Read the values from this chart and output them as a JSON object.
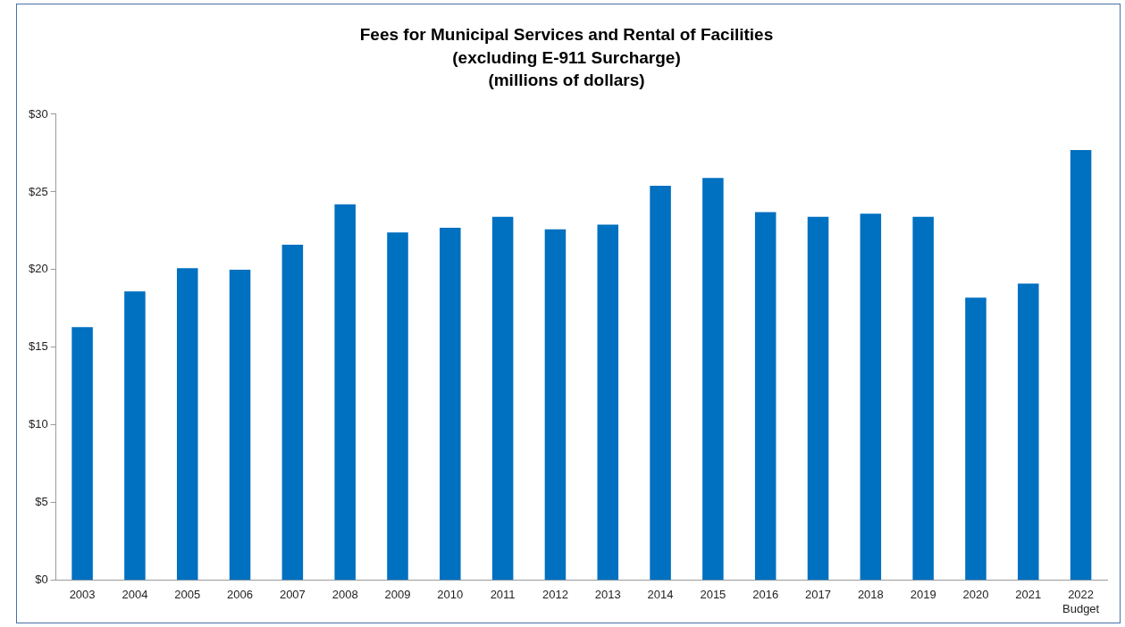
{
  "chart_data": {
    "type": "bar",
    "title": "Fees for Municipal Services and Rental of Facilities\n(excluding E-911 Surcharge)\n(millions of dollars)",
    "categories": [
      "2003",
      "2004",
      "2005",
      "2006",
      "2007",
      "2008",
      "2009",
      "2010",
      "2011",
      "2012",
      "2013",
      "2014",
      "2015",
      "2016",
      "2017",
      "2018",
      "2019",
      "2020",
      "2021",
      "2022\nBudget"
    ],
    "values": [
      16.3,
      18.6,
      20.1,
      20.0,
      21.6,
      24.2,
      22.4,
      22.7,
      23.4,
      22.6,
      22.9,
      25.4,
      25.9,
      23.7,
      23.4,
      23.6,
      23.4,
      18.2,
      19.1,
      27.7
    ],
    "color": "#0070c0",
    "ylim": [
      0,
      30
    ],
    "yticks": [
      {
        "value": 0,
        "label": "$0"
      },
      {
        "value": 5,
        "label": "$5"
      },
      {
        "value": 10,
        "label": "$10"
      },
      {
        "value": 15,
        "label": "$15"
      },
      {
        "value": 20,
        "label": "$20"
      },
      {
        "value": 25,
        "label": "$25"
      },
      {
        "value": 30,
        "label": "$30"
      }
    ],
    "grid": false,
    "legend": false
  }
}
